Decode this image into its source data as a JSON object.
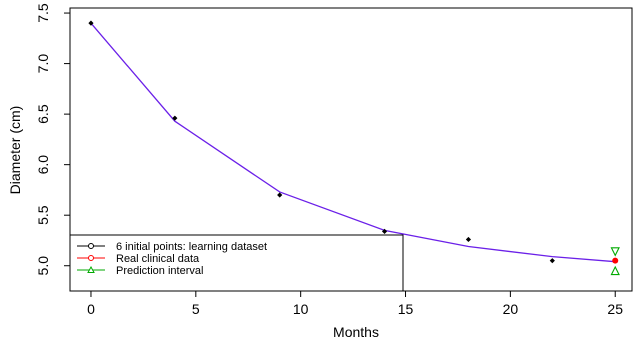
{
  "chart_data": {
    "type": "line",
    "xlabel": "Months",
    "ylabel": "Diameter (cm)",
    "xlim": [
      -1,
      25.8
    ],
    "ylim": [
      4.75,
      7.55
    ],
    "xticks": [
      0,
      5,
      10,
      15,
      20,
      25
    ],
    "xtick_labels": [
      "0",
      "5",
      "10",
      "15",
      "20",
      "25"
    ],
    "yticks": [
      5.0,
      5.5,
      6.0,
      6.5,
      7.0,
      7.5
    ],
    "ytick_labels": [
      "5.0",
      "5.5",
      "6.0",
      "6.5",
      "7.0",
      "7.5"
    ],
    "grid": false,
    "legend_position": "bottom-left",
    "series": [
      {
        "name": "6 initial points: learning dataset",
        "kind": "points",
        "color": "#000000",
        "x": [
          0,
          4,
          9,
          14,
          18,
          22
        ],
        "y": [
          7.4,
          6.46,
          5.7,
          5.34,
          5.26,
          5.05
        ]
      },
      {
        "name": "Real clinical data",
        "kind": "point",
        "color": "#ff0000",
        "x": [
          25
        ],
        "y": [
          5.05
        ]
      },
      {
        "name": "Prediction interval",
        "kind": "interval",
        "color": "#00aa00",
        "x": [
          25
        ],
        "upper": [
          5.14
        ],
        "lower": [
          4.95
        ]
      },
      {
        "name": "",
        "kind": "fit",
        "color": "#6b20e8",
        "x": [
          0,
          4,
          9,
          14,
          18,
          22,
          25
        ],
        "y": [
          7.4,
          6.43,
          5.73,
          5.35,
          5.19,
          5.09,
          5.04
        ]
      }
    ]
  }
}
